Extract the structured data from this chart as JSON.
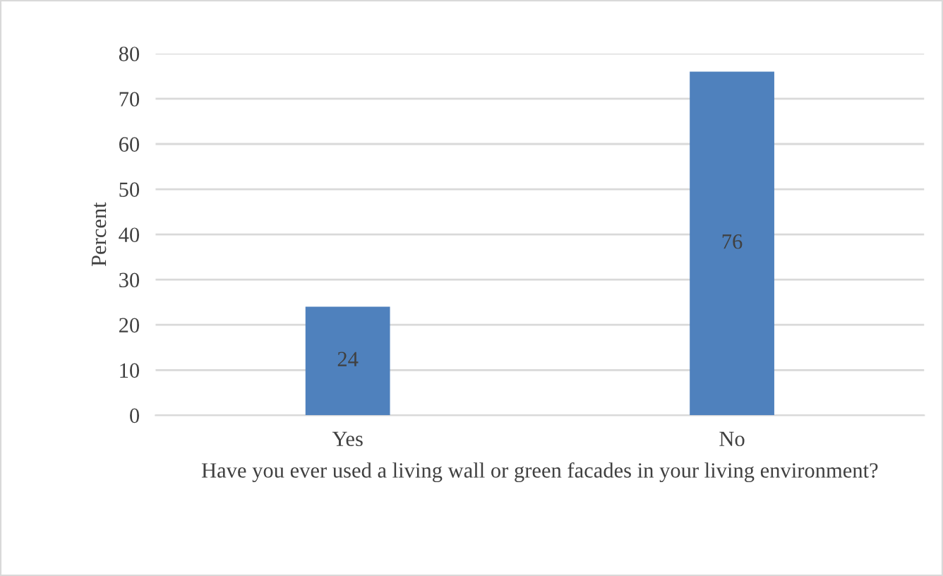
{
  "chart_data": {
    "type": "bar",
    "xlabel": "Have you ever used a living wall or green facades in your living environment?",
    "ylabel": "Percent",
    "categories": [
      "Yes",
      "No"
    ],
    "values": [
      24,
      76
    ],
    "color": "#4f81bd",
    "ylim": [
      0,
      80
    ],
    "yticks": [
      0,
      10,
      20,
      30,
      40,
      50,
      60,
      70,
      80
    ],
    "grid": "y",
    "data_labels": true
  }
}
